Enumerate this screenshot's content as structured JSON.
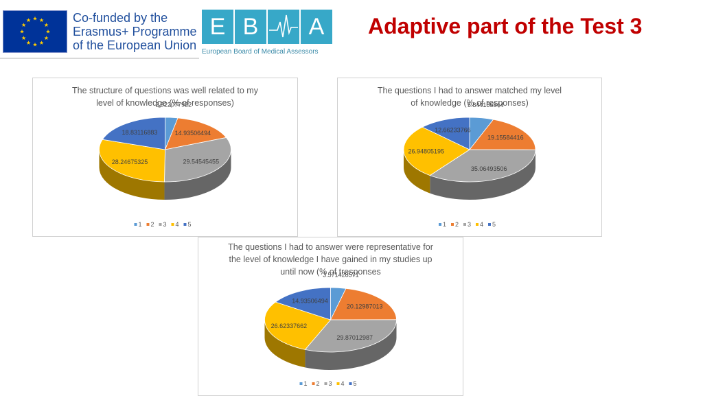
{
  "header": {
    "eu_text_line1": "Co-funded by the",
    "eu_text_line2": "Erasmus+ Programme",
    "eu_text_line3": "of the European Union",
    "ebma_letters": [
      "E",
      "B",
      "A"
    ],
    "ebma_subtitle": "European Board of Medical Assessors",
    "title": "Adaptive part of the Test 3"
  },
  "colors": {
    "series": [
      "#5b9bd5",
      "#ed7d31",
      "#a5a5a5",
      "#ffc000",
      "#4472c4"
    ],
    "title": "#c00000",
    "eu_blue": "#003399",
    "eu_star": "#ffcc00",
    "ebma_teal": "#37a8c8"
  },
  "chart_data": [
    {
      "type": "pie",
      "title_lines": [
        "The structure of questions was well related to my",
        "level of knowledge (% of responses)"
      ],
      "categories": [
        "1",
        "2",
        "3",
        "4",
        "5"
      ],
      "values": [
        2.922077922,
        14.93506494,
        29.54545455,
        28.24675325,
        18.83116883
      ],
      "data_labels": [
        "2.922077922",
        "14.93506494",
        "29.54545455",
        "28.24675325",
        "18.83116883"
      ],
      "legend": "bottom",
      "style": "3d"
    },
    {
      "type": "pie",
      "title_lines": [
        "The questions I had to answer matched my level",
        "of knowledge (% of responses)"
      ],
      "categories": [
        "1",
        "2",
        "3",
        "4",
        "5"
      ],
      "values": [
        5.844155844,
        19.15584416,
        35.06493506,
        26.94805195,
        12.66233766
      ],
      "data_labels": [
        "5.844155844",
        "19.15584416",
        "35.06493506",
        "26.94805195",
        "12.66233766"
      ],
      "legend": "bottom",
      "style": "3d"
    },
    {
      "type": "pie",
      "title_lines": [
        "The questions I had to answer were representative for",
        "the level of knowledge I have gained in my studies up",
        "until now (% of tresponses"
      ],
      "categories": [
        "1",
        "2",
        "3",
        "4",
        "5"
      ],
      "values": [
        3.571428571,
        20.12987013,
        29.87012987,
        26.62337662,
        14.93506494
      ],
      "data_labels": [
        "3.571428571",
        "20.12987013",
        "29.87012987",
        "26.62337662",
        "14.93506494"
      ],
      "legend": "bottom",
      "style": "3d"
    }
  ]
}
